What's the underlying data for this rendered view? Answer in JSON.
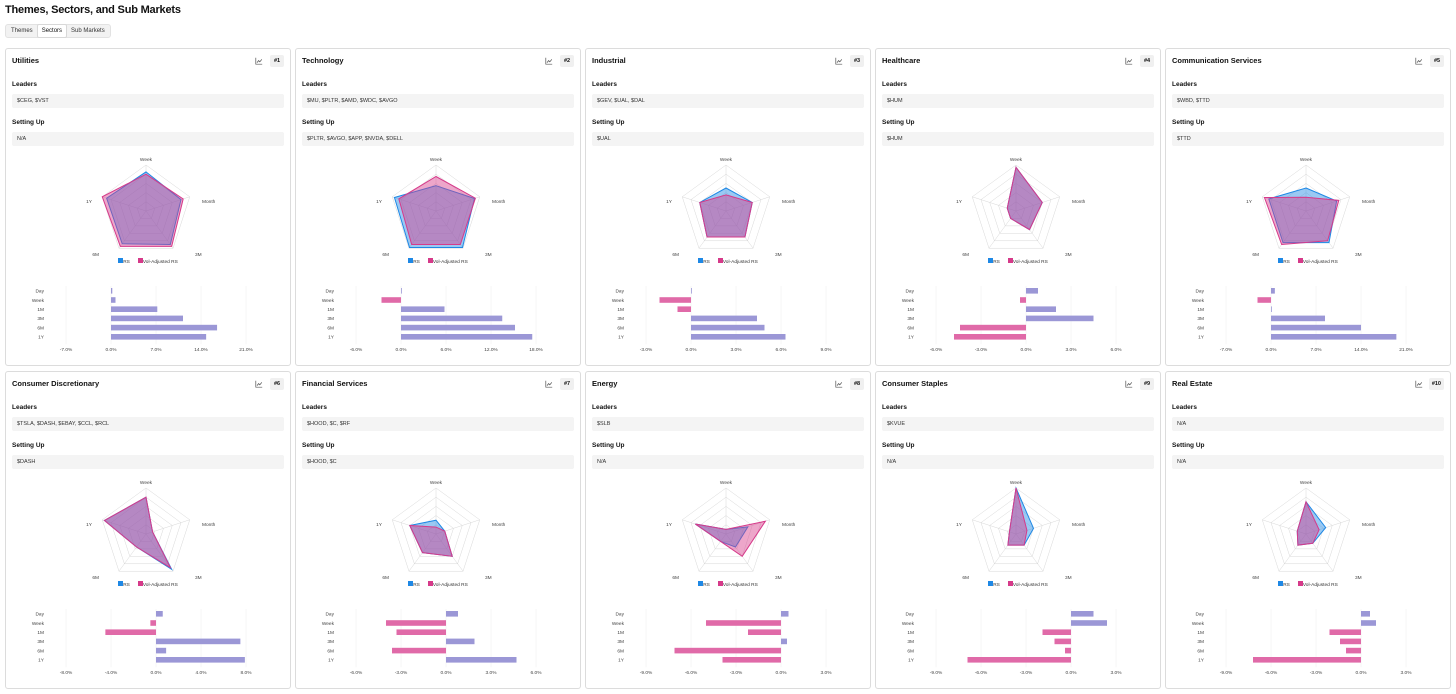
{
  "page": {
    "title": "Themes, Sectors, and Sub Markets",
    "tabs": [
      {
        "label": "Themes",
        "active": false
      },
      {
        "label": "Sectors",
        "active": true
      },
      {
        "label": "Sub Markets",
        "active": false
      }
    ]
  },
  "labels": {
    "leaders": "Leaders",
    "setting_up": "Setting Up",
    "legend_rs": "RS",
    "legend_vol": "Vol-Adjusted RS",
    "radar_axes": [
      "Week",
      "Month",
      "3M",
      "6M",
      "1Y"
    ],
    "bar_categories": [
      "Day",
      "Week",
      "1M",
      "3M",
      "6M",
      "1Y"
    ]
  },
  "colors": {
    "rs": "#1e88e5",
    "vol_adjusted_rs": "#d63a8a",
    "bar_positive": "#9b97d6",
    "bar_negative": "#e06aa8",
    "overlap": "#9a8cc8"
  },
  "icons": {
    "chart_button": "line-chart-icon"
  },
  "sectors": [
    {
      "name": "Utilities",
      "rank": "#1",
      "leaders": "$CEG, $VST",
      "setting_up": "N/A",
      "radar_rs": [
        0.85,
        0.8,
        0.9,
        0.88,
        0.9
      ],
      "radar_vol": [
        0.8,
        0.85,
        0.95,
        0.95,
        1.0
      ],
      "bars": [
        0.2,
        0.7,
        7.2,
        11.2,
        16.5,
        14.8
      ],
      "xticks": [
        "-7.0%",
        "0.0%",
        "7.0%",
        "14.0%",
        "21.0%"
      ],
      "xmin": -7,
      "xmax": 21
    },
    {
      "name": "Technology",
      "rank": "#2",
      "leaders": "$MU, $PLTR, $AMD, $WDC, $AVGO",
      "setting_up": "$PLTR, $AVGO, $APP, $NVDA, $DELL",
      "radar_rs": [
        0.55,
        0.88,
        0.98,
        0.98,
        0.95
      ],
      "radar_vol": [
        0.75,
        0.9,
        0.9,
        0.9,
        0.85
      ],
      "bars": [
        0.1,
        -2.6,
        5.8,
        13.5,
        15.2,
        17.5
      ],
      "xticks": [
        "-6.0%",
        "0.0%",
        "6.0%",
        "12.0%",
        "18.0%"
      ],
      "xmin": -6,
      "xmax": 18
    },
    {
      "name": "Industrial",
      "rank": "#3",
      "leaders": "$GEV, $UAL, $DAL",
      "setting_up": "$UAL",
      "radar_rs": [
        0.5,
        0.6,
        0.7,
        0.7,
        0.6
      ],
      "radar_vol": [
        0.35,
        0.6,
        0.7,
        0.7,
        0.6
      ],
      "bars": [
        0.05,
        -2.1,
        -0.9,
        4.4,
        4.9,
        6.3
      ],
      "xticks": [
        "-3.0%",
        "0.0%",
        "3.0%",
        "6.0%",
        "9.0%"
      ],
      "xmin": -3,
      "xmax": 9
    },
    {
      "name": "Healthcare",
      "rank": "#4",
      "leaders": "$HUM",
      "setting_up": "$HUM",
      "radar_rs": [
        0.95,
        0.6,
        0.5,
        0.2,
        0.2
      ],
      "radar_vol": [
        0.95,
        0.6,
        0.5,
        0.2,
        0.2
      ],
      "bars": [
        0.8,
        -0.4,
        2.0,
        4.5,
        -4.4,
        -4.8
      ],
      "xticks": [
        "-6.0%",
        "-3.0%",
        "0.0%",
        "3.0%",
        "6.0%"
      ],
      "xmin": -6,
      "xmax": 6
    },
    {
      "name": "Communication Services",
      "rank": "#5",
      "leaders": "$WBD, $TTD",
      "setting_up": "$TTD",
      "radar_rs": [
        0.5,
        0.7,
        0.85,
        0.85,
        0.85
      ],
      "radar_vol": [
        0.3,
        0.75,
        0.8,
        0.9,
        0.95
      ],
      "bars": [
        0.6,
        -2.1,
        0.0,
        8.4,
        14.0,
        19.5
      ],
      "xticks": [
        "-7.0%",
        "0.0%",
        "7.0%",
        "14.0%",
        "21.0%"
      ],
      "xmin": -7,
      "xmax": 21
    },
    {
      "name": "Consumer Discretionary",
      "rank": "#6",
      "leaders": "$TSLA, $DASH, $EBAY, $CCL, $RCL",
      "setting_up": "$DASH",
      "radar_rs": [
        0.8,
        0.15,
        0.95,
        0.35,
        0.95
      ],
      "radar_vol": [
        0.8,
        0.15,
        0.9,
        0.35,
        0.95
      ],
      "bars": [
        0.6,
        -0.5,
        -4.5,
        7.5,
        0.9,
        7.9
      ],
      "xticks": [
        "-8.0%",
        "-4.0%",
        "0.0%",
        "4.0%",
        "8.0%"
      ],
      "xmin": -8,
      "xmax": 8
    },
    {
      "name": "Financial Services",
      "rank": "#7",
      "leaders": "$HOOD, $C, $RF",
      "setting_up": "$HOOD, $C",
      "radar_rs": [
        0.3,
        0.2,
        0.6,
        0.5,
        0.6
      ],
      "radar_vol": [
        0.15,
        0.2,
        0.6,
        0.5,
        0.6
      ],
      "bars": [
        0.8,
        -4.0,
        -3.3,
        1.9,
        -3.6,
        4.7
      ],
      "xticks": [
        "-6.0%",
        "-3.0%",
        "0.0%",
        "3.0%",
        "6.0%"
      ],
      "xmin": -6,
      "xmax": 6
    },
    {
      "name": "Energy",
      "rank": "#8",
      "leaders": "$SLB",
      "setting_up": "N/A",
      "radar_rs": [
        0.1,
        0.5,
        0.35,
        0.2,
        0.7
      ],
      "radar_vol": [
        0.1,
        0.9,
        0.6,
        0.2,
        0.7
      ],
      "bars": [
        0.5,
        -5.0,
        -2.2,
        0.4,
        -7.1,
        -3.9
      ],
      "xticks": [
        "-9.0%",
        "-6.0%",
        "-3.0%",
        "0.0%",
        "3.0%"
      ],
      "xmin": -9,
      "xmax": 3
    },
    {
      "name": "Consumer Staples",
      "rank": "#9",
      "leaders": "$KVUE",
      "setting_up": "N/A",
      "radar_rs": [
        1.0,
        0.4,
        0.3,
        0.3,
        0.15
      ],
      "radar_vol": [
        1.0,
        0.25,
        0.3,
        0.3,
        0.15
      ],
      "bars": [
        1.5,
        2.4,
        -1.9,
        -1.1,
        -0.4,
        -6.9
      ],
      "xticks": [
        "-9.0%",
        "-6.0%",
        "-3.0%",
        "0.0%",
        "3.0%"
      ],
      "xmin": -9,
      "xmax": 3
    },
    {
      "name": "Real Estate",
      "rank": "#10",
      "leaders": "N/A",
      "setting_up": "N/A",
      "radar_rs": [
        0.7,
        0.45,
        0.25,
        0.3,
        0.2
      ],
      "radar_vol": [
        0.7,
        0.3,
        0.25,
        0.3,
        0.2
      ],
      "bars": [
        0.6,
        1.0,
        -2.1,
        -1.4,
        -1.0,
        -7.2
      ],
      "xticks": [
        "-9.0%",
        "-6.0%",
        "-3.0%",
        "0.0%",
        "3.0%"
      ],
      "xmin": -9,
      "xmax": 3
    }
  ]
}
